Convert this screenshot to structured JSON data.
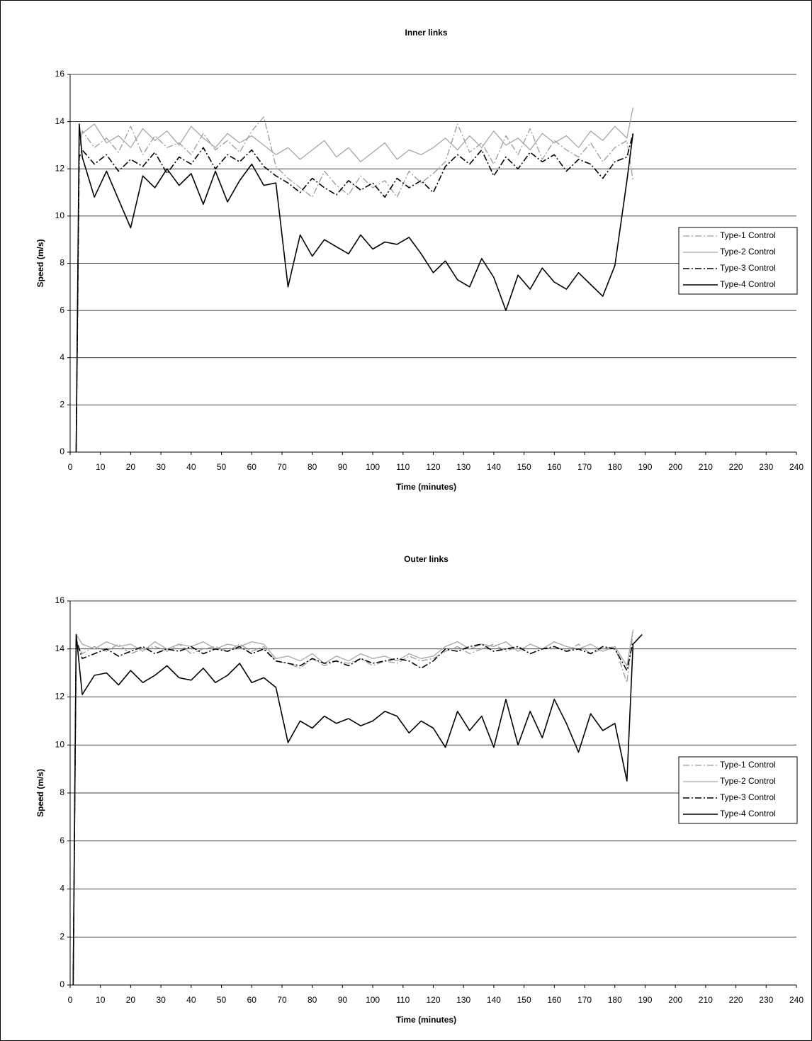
{
  "chart_data": [
    {
      "type": "line",
      "title": "Inner links",
      "x_label": "Time (minutes)",
      "y_label": "Speed (m/s)",
      "x": [
        2,
        3,
        4,
        8,
        12,
        16,
        20,
        24,
        28,
        32,
        36,
        40,
        44,
        48,
        52,
        56,
        60,
        64,
        68,
        72,
        76,
        80,
        84,
        88,
        92,
        96,
        100,
        104,
        108,
        112,
        116,
        120,
        124,
        128,
        132,
        136,
        140,
        144,
        148,
        152,
        156,
        160,
        164,
        168,
        172,
        176,
        180,
        184,
        186
      ],
      "series": [
        {
          "name": "Type-1 Control",
          "color": "#9a9a9a",
          "style": "dash-dot",
          "values": [
            0.2,
            12.8,
            13.6,
            12.9,
            13.3,
            12.7,
            13.8,
            12.6,
            13.4,
            12.9,
            13.1,
            12.6,
            13.5,
            12.8,
            13.2,
            12.7,
            13.6,
            14.2,
            12.1,
            11.6,
            11.2,
            10.8,
            11.9,
            11.3,
            10.9,
            11.7,
            11.2,
            11.5,
            10.8,
            11.9,
            11.4,
            11.8,
            12.3,
            13.9,
            12.7,
            13.1,
            12.2,
            13.4,
            12.6,
            13.7,
            12.4,
            13.2,
            12.8,
            12.5,
            13.1,
            12.3,
            12.9,
            13.2,
            11.5
          ]
        },
        {
          "name": "Type-2 Control",
          "color": "#a6a6a6",
          "style": "solid",
          "values": [
            0.3,
            13.2,
            13.5,
            13.9,
            13.1,
            13.4,
            12.9,
            13.7,
            13.2,
            13.6,
            13.0,
            13.8,
            13.3,
            12.9,
            13.5,
            13.1,
            13.4,
            13.0,
            12.6,
            12.9,
            12.4,
            12.8,
            13.2,
            12.5,
            12.9,
            12.3,
            12.7,
            13.1,
            12.4,
            12.8,
            12.6,
            12.9,
            13.3,
            12.8,
            13.4,
            12.9,
            13.6,
            13.0,
            13.3,
            12.8,
            13.5,
            13.1,
            13.4,
            12.9,
            13.6,
            13.2,
            13.8,
            13.3,
            14.6
          ]
        },
        {
          "name": "Type-3 Control",
          "color": "#000000",
          "style": "dash-dot",
          "values": [
            0.1,
            12.5,
            12.8,
            12.2,
            12.6,
            11.9,
            12.4,
            12.1,
            12.7,
            11.8,
            12.5,
            12.2,
            12.9,
            12.0,
            12.6,
            12.3,
            12.8,
            12.1,
            11.7,
            11.4,
            11.0,
            11.6,
            11.2,
            10.9,
            11.5,
            11.1,
            11.4,
            10.8,
            11.6,
            11.2,
            11.5,
            11.0,
            12.1,
            12.6,
            12.2,
            12.8,
            11.7,
            12.5,
            12.0,
            12.7,
            12.3,
            12.6,
            11.9,
            12.4,
            12.2,
            11.6,
            12.3,
            12.5,
            13.5
          ]
        },
        {
          "name": "Type-4 Control",
          "color": "#000000",
          "style": "solid",
          "values": [
            0,
            13.9,
            12.5,
            10.8,
            11.9,
            10.7,
            9.5,
            11.7,
            11.2,
            12.0,
            11.3,
            11.8,
            10.5,
            11.9,
            10.6,
            11.5,
            12.2,
            11.3,
            11.4,
            7.0,
            9.2,
            8.3,
            9.0,
            8.7,
            8.4,
            9.2,
            8.6,
            8.9,
            8.8,
            9.1,
            8.4,
            7.6,
            8.1,
            7.3,
            7.0,
            8.2,
            7.4,
            6.0,
            7.5,
            6.9,
            7.8,
            7.2,
            6.9,
            7.6,
            7.1,
            6.6,
            7.9,
            11.5,
            13.5
          ]
        }
      ],
      "xlim": [
        0,
        240
      ],
      "xticks": [
        0,
        10,
        20,
        30,
        40,
        50,
        60,
        70,
        80,
        90,
        100,
        110,
        120,
        130,
        140,
        150,
        160,
        170,
        180,
        190,
        200,
        210,
        220,
        230,
        240
      ],
      "ylim": [
        0,
        16
      ],
      "yticks": [
        0,
        2,
        4,
        6,
        8,
        10,
        12,
        14,
        16
      ],
      "grid": true,
      "legend": "right"
    },
    {
      "type": "line",
      "title": "Outer links",
      "x_label": "Time (minutes)",
      "y_label": "Speed (m/s)",
      "x": [
        1,
        2,
        4,
        8,
        12,
        16,
        20,
        24,
        28,
        32,
        36,
        40,
        44,
        48,
        52,
        56,
        60,
        64,
        68,
        72,
        76,
        80,
        84,
        88,
        92,
        96,
        100,
        104,
        108,
        112,
        116,
        120,
        124,
        128,
        132,
        136,
        140,
        144,
        148,
        152,
        156,
        160,
        164,
        168,
        172,
        176,
        180,
        184,
        186,
        189
      ],
      "series": [
        {
          "name": "Type-1 Control",
          "color": "#9a9a9a",
          "style": "dash-dot",
          "values": [
            0.2,
            14.3,
            13.8,
            14.1,
            13.9,
            14.2,
            13.8,
            14.0,
            14.1,
            13.9,
            14.2,
            13.8,
            14.0,
            14.1,
            13.9,
            14.2,
            13.9,
            14.1,
            13.5,
            13.4,
            13.2,
            13.6,
            13.3,
            13.5,
            13.4,
            13.6,
            13.3,
            13.5,
            13.4,
            13.7,
            13.5,
            13.6,
            13.9,
            14.1,
            13.8,
            14.0,
            14.2,
            13.9,
            14.1,
            13.8,
            14.0,
            14.1,
            13.9,
            14.2,
            13.8,
            14.0,
            14.1,
            12.6,
            14.7,
            null
          ]
        },
        {
          "name": "Type-2 Control",
          "color": "#a6a6a6",
          "style": "solid",
          "values": [
            0.3,
            14.6,
            14.2,
            14.0,
            14.3,
            14.1,
            14.2,
            13.9,
            14.3,
            14.0,
            14.2,
            14.1,
            14.3,
            14.0,
            14.2,
            14.1,
            14.3,
            14.2,
            13.6,
            13.7,
            13.5,
            13.8,
            13.4,
            13.7,
            13.5,
            13.8,
            13.6,
            13.7,
            13.5,
            13.8,
            13.6,
            13.7,
            14.1,
            14.3,
            14.0,
            14.2,
            14.1,
            14.3,
            13.9,
            14.2,
            14.0,
            14.3,
            14.1,
            14.0,
            14.2,
            13.9,
            14.1,
            13.3,
            14.8,
            null
          ]
        },
        {
          "name": "Type-3 Control",
          "color": "#000000",
          "style": "dash-dot",
          "values": [
            0.1,
            14.4,
            13.6,
            13.8,
            14.0,
            13.7,
            13.9,
            14.1,
            13.8,
            14.0,
            13.9,
            14.1,
            13.8,
            14.0,
            13.9,
            14.1,
            13.8,
            14.0,
            13.5,
            13.4,
            13.3,
            13.6,
            13.4,
            13.5,
            13.3,
            13.6,
            13.4,
            13.5,
            13.6,
            13.5,
            13.2,
            13.5,
            14.0,
            13.9,
            14.1,
            14.2,
            13.9,
            14.0,
            14.1,
            13.8,
            14.0,
            14.1,
            13.9,
            14.0,
            13.8,
            14.1,
            14.0,
            13.1,
            14.3,
            null
          ]
        },
        {
          "name": "Type-4 Control",
          "color": "#000000",
          "style": "solid",
          "values": [
            0,
            14.6,
            12.1,
            12.9,
            13.0,
            12.5,
            13.1,
            12.6,
            12.9,
            13.3,
            12.8,
            12.7,
            13.2,
            12.6,
            12.9,
            13.4,
            12.6,
            12.8,
            12.4,
            10.1,
            11.0,
            10.7,
            11.2,
            10.9,
            11.1,
            10.8,
            11.0,
            11.4,
            11.2,
            10.5,
            11.0,
            10.7,
            9.9,
            11.4,
            10.6,
            11.2,
            9.9,
            11.9,
            10.0,
            11.4,
            10.3,
            11.9,
            10.9,
            9.7,
            11.3,
            10.6,
            10.9,
            8.5,
            14.2,
            14.6
          ]
        }
      ],
      "xlim": [
        0,
        240
      ],
      "xticks": [
        0,
        10,
        20,
        30,
        40,
        50,
        60,
        70,
        80,
        90,
        100,
        110,
        120,
        130,
        140,
        150,
        160,
        170,
        180,
        190,
        200,
        210,
        220,
        230,
        240
      ],
      "ylim": [
        0,
        16
      ],
      "yticks": [
        0,
        2,
        4,
        6,
        8,
        10,
        12,
        14,
        16
      ],
      "grid": true,
      "legend": "right"
    }
  ]
}
